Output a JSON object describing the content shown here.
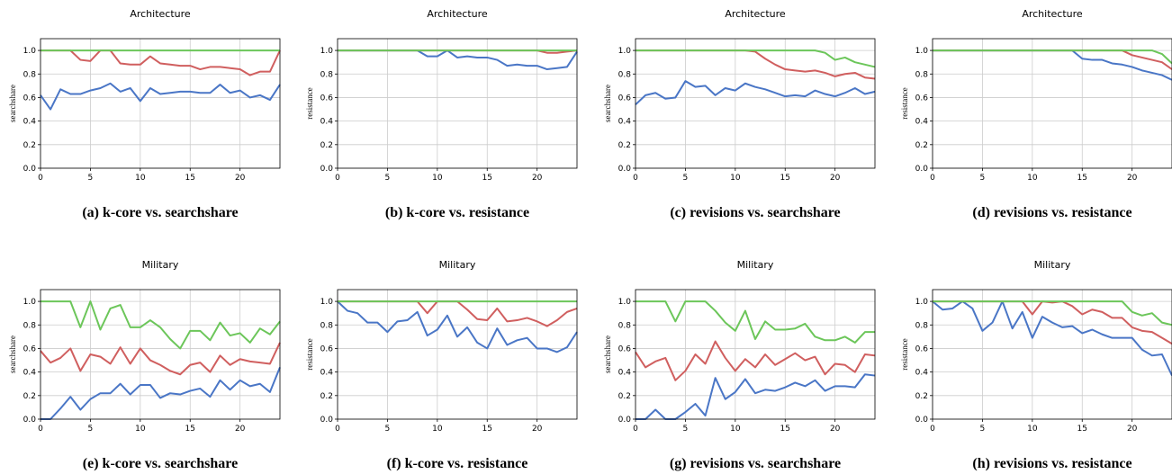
{
  "colors": {
    "blue": "#4a76c6",
    "red": "#d05f5f",
    "green": "#6cc65a",
    "grid": "#cccccc"
  },
  "chart_data": [
    {
      "type": "line",
      "caption": "(a) k-core vs. searchshare",
      "title": "Architecture",
      "xlabel": "",
      "ylabel": "searchshare",
      "xlim": [
        0,
        24
      ],
      "ylim": [
        0,
        1.1
      ],
      "xticks": [
        "0",
        "5",
        "10",
        "15",
        "20"
      ],
      "yticks": [
        "0.0",
        "0.2",
        "0.4",
        "0.6",
        "0.8",
        "1.0"
      ],
      "grid": true,
      "x": [
        0,
        1,
        2,
        3,
        4,
        5,
        6,
        7,
        8,
        9,
        10,
        11,
        12,
        13,
        14,
        15,
        16,
        17,
        18,
        19,
        20,
        21,
        22,
        23,
        24
      ],
      "series": [
        {
          "color": "blue",
          "values": [
            0.62,
            0.5,
            0.67,
            0.63,
            0.63,
            0.66,
            0.68,
            0.72,
            0.65,
            0.68,
            0.57,
            0.68,
            0.63,
            0.64,
            0.65,
            0.65,
            0.64,
            0.64,
            0.71,
            0.64,
            0.66,
            0.6,
            0.62,
            0.58,
            0.71
          ]
        },
        {
          "color": "red",
          "values": [
            1.0,
            1.0,
            1.0,
            1.0,
            0.92,
            0.91,
            1.0,
            1.0,
            0.89,
            0.88,
            0.88,
            0.95,
            0.89,
            0.88,
            0.87,
            0.87,
            0.84,
            0.86,
            0.86,
            0.85,
            0.84,
            0.79,
            0.82,
            0.82,
            1.0
          ]
        },
        {
          "color": "green",
          "values": [
            1.0,
            1.0,
            1.0,
            1.0,
            1.0,
            1.0,
            1.0,
            1.0,
            1.0,
            1.0,
            1.0,
            1.0,
            1.0,
            1.0,
            1.0,
            1.0,
            1.0,
            1.0,
            1.0,
            1.0,
            1.0,
            1.0,
            1.0,
            1.0,
            1.0
          ]
        }
      ]
    },
    {
      "type": "line",
      "caption": "(b) k-core vs. resistance",
      "title": "Architecture",
      "xlabel": "",
      "ylabel": "resistance",
      "xlim": [
        0,
        24
      ],
      "ylim": [
        0,
        1.1
      ],
      "xticks": [
        "0",
        "5",
        "10",
        "15",
        "20"
      ],
      "yticks": [
        "0.0",
        "0.2",
        "0.4",
        "0.6",
        "0.8",
        "1.0"
      ],
      "grid": true,
      "x": [
        0,
        1,
        2,
        3,
        4,
        5,
        6,
        7,
        8,
        9,
        10,
        11,
        12,
        13,
        14,
        15,
        16,
        17,
        18,
        19,
        20,
        21,
        22,
        23,
        24
      ],
      "series": [
        {
          "color": "blue",
          "values": [
            1.0,
            1.0,
            1.0,
            1.0,
            1.0,
            1.0,
            1.0,
            1.0,
            1.0,
            0.95,
            0.95,
            1.0,
            0.94,
            0.95,
            0.94,
            0.94,
            0.92,
            0.87,
            0.88,
            0.87,
            0.87,
            0.84,
            0.85,
            0.86,
            0.99
          ]
        },
        {
          "color": "red",
          "values": [
            1.0,
            1.0,
            1.0,
            1.0,
            1.0,
            1.0,
            1.0,
            1.0,
            1.0,
            1.0,
            1.0,
            1.0,
            1.0,
            1.0,
            1.0,
            1.0,
            1.0,
            1.0,
            1.0,
            1.0,
            1.0,
            0.98,
            0.98,
            0.99,
            1.0
          ]
        },
        {
          "color": "green",
          "values": [
            1.0,
            1.0,
            1.0,
            1.0,
            1.0,
            1.0,
            1.0,
            1.0,
            1.0,
            1.0,
            1.0,
            1.0,
            1.0,
            1.0,
            1.0,
            1.0,
            1.0,
            1.0,
            1.0,
            1.0,
            1.0,
            1.0,
            1.0,
            1.0,
            1.0
          ]
        }
      ]
    },
    {
      "type": "line",
      "caption": "(c) revisions vs. searchshare",
      "title": "Architecture",
      "xlabel": "",
      "ylabel": "searchshare",
      "xlim": [
        0,
        24
      ],
      "ylim": [
        0,
        1.1
      ],
      "xticks": [
        "0",
        "5",
        "10",
        "15",
        "20"
      ],
      "yticks": [
        "0.0",
        "0.2",
        "0.4",
        "0.6",
        "0.8",
        "1.0"
      ],
      "grid": true,
      "x": [
        0,
        1,
        2,
        3,
        4,
        5,
        6,
        7,
        8,
        9,
        10,
        11,
        12,
        13,
        14,
        15,
        16,
        17,
        18,
        19,
        20,
        21,
        22,
        23,
        24
      ],
      "series": [
        {
          "color": "blue",
          "values": [
            0.54,
            0.62,
            0.64,
            0.59,
            0.6,
            0.74,
            0.69,
            0.7,
            0.62,
            0.68,
            0.66,
            0.72,
            0.69,
            0.67,
            0.64,
            0.61,
            0.62,
            0.61,
            0.66,
            0.63,
            0.61,
            0.64,
            0.68,
            0.63,
            0.65
          ]
        },
        {
          "color": "red",
          "values": [
            1.0,
            1.0,
            1.0,
            1.0,
            1.0,
            1.0,
            1.0,
            1.0,
            1.0,
            1.0,
            1.0,
            1.0,
            0.99,
            0.93,
            0.88,
            0.84,
            0.83,
            0.82,
            0.83,
            0.81,
            0.78,
            0.8,
            0.81,
            0.77,
            0.76
          ]
        },
        {
          "color": "green",
          "values": [
            1.0,
            1.0,
            1.0,
            1.0,
            1.0,
            1.0,
            1.0,
            1.0,
            1.0,
            1.0,
            1.0,
            1.0,
            1.0,
            1.0,
            1.0,
            1.0,
            1.0,
            1.0,
            1.0,
            0.98,
            0.92,
            0.94,
            0.9,
            0.88,
            0.86
          ]
        }
      ]
    },
    {
      "type": "line",
      "caption": "(d) revisions vs. resistance",
      "title": "Architecture",
      "xlabel": "",
      "ylabel": "resistance",
      "xlim": [
        0,
        24
      ],
      "ylim": [
        0,
        1.1
      ],
      "xticks": [
        "0",
        "5",
        "10",
        "15",
        "20"
      ],
      "yticks": [
        "0.0",
        "0.2",
        "0.4",
        "0.6",
        "0.8",
        "1.0"
      ],
      "grid": true,
      "x": [
        0,
        1,
        2,
        3,
        4,
        5,
        6,
        7,
        8,
        9,
        10,
        11,
        12,
        13,
        14,
        15,
        16,
        17,
        18,
        19,
        20,
        21,
        22,
        23,
        24
      ],
      "series": [
        {
          "color": "blue",
          "values": [
            1.0,
            1.0,
            1.0,
            1.0,
            1.0,
            1.0,
            1.0,
            1.0,
            1.0,
            1.0,
            1.0,
            1.0,
            1.0,
            1.0,
            1.0,
            0.93,
            0.92,
            0.92,
            0.89,
            0.88,
            0.86,
            0.83,
            0.81,
            0.79,
            0.75
          ]
        },
        {
          "color": "red",
          "values": [
            1.0,
            1.0,
            1.0,
            1.0,
            1.0,
            1.0,
            1.0,
            1.0,
            1.0,
            1.0,
            1.0,
            1.0,
            1.0,
            1.0,
            1.0,
            1.0,
            1.0,
            1.0,
            1.0,
            1.0,
            0.96,
            0.94,
            0.92,
            0.9,
            0.84
          ]
        },
        {
          "color": "green",
          "values": [
            1.0,
            1.0,
            1.0,
            1.0,
            1.0,
            1.0,
            1.0,
            1.0,
            1.0,
            1.0,
            1.0,
            1.0,
            1.0,
            1.0,
            1.0,
            1.0,
            1.0,
            1.0,
            1.0,
            1.0,
            1.0,
            1.0,
            1.0,
            0.97,
            0.89
          ]
        }
      ]
    },
    {
      "type": "line",
      "caption": "(e) k-core vs. searchshare",
      "title": "Military",
      "xlabel": "",
      "ylabel": "searchshare",
      "xlim": [
        0,
        24
      ],
      "ylim": [
        0,
        1.1
      ],
      "xticks": [
        "0",
        "5",
        "10",
        "15",
        "20"
      ],
      "yticks": [
        "0.0",
        "0.2",
        "0.4",
        "0.6",
        "0.8",
        "1.0"
      ],
      "grid": true,
      "x": [
        0,
        1,
        2,
        3,
        4,
        5,
        6,
        7,
        8,
        9,
        10,
        11,
        12,
        13,
        14,
        15,
        16,
        17,
        18,
        19,
        20,
        21,
        22,
        23,
        24
      ],
      "series": [
        {
          "color": "blue",
          "values": [
            0.0,
            0.0,
            0.09,
            0.19,
            0.08,
            0.17,
            0.22,
            0.22,
            0.3,
            0.21,
            0.29,
            0.29,
            0.18,
            0.22,
            0.21,
            0.24,
            0.26,
            0.19,
            0.33,
            0.25,
            0.33,
            0.28,
            0.3,
            0.23,
            0.44
          ]
        },
        {
          "color": "red",
          "values": [
            0.58,
            0.48,
            0.52,
            0.6,
            0.41,
            0.55,
            0.53,
            0.47,
            0.61,
            0.47,
            0.6,
            0.5,
            0.46,
            0.41,
            0.38,
            0.46,
            0.48,
            0.4,
            0.54,
            0.46,
            0.51,
            0.49,
            0.48,
            0.47,
            0.65
          ]
        },
        {
          "color": "green",
          "values": [
            1.0,
            1.0,
            1.0,
            1.0,
            0.78,
            1.0,
            0.76,
            0.94,
            0.97,
            0.78,
            0.78,
            0.84,
            0.78,
            0.68,
            0.6,
            0.75,
            0.75,
            0.67,
            0.82,
            0.71,
            0.73,
            0.65,
            0.77,
            0.72,
            0.83
          ]
        }
      ]
    },
    {
      "type": "line",
      "caption": "(f) k-core vs. resistance",
      "title": "Military",
      "xlabel": "",
      "ylabel": "resistance",
      "xlim": [
        0,
        24
      ],
      "ylim": [
        0,
        1.1
      ],
      "xticks": [
        "0",
        "5",
        "10",
        "15",
        "20"
      ],
      "yticks": [
        "0.0",
        "0.2",
        "0.4",
        "0.6",
        "0.8",
        "1.0"
      ],
      "grid": true,
      "x": [
        0,
        1,
        2,
        3,
        4,
        5,
        6,
        7,
        8,
        9,
        10,
        11,
        12,
        13,
        14,
        15,
        16,
        17,
        18,
        19,
        20,
        21,
        22,
        23,
        24
      ],
      "series": [
        {
          "color": "blue",
          "values": [
            1.0,
            0.92,
            0.9,
            0.82,
            0.82,
            0.74,
            0.83,
            0.84,
            0.91,
            0.71,
            0.76,
            0.88,
            0.7,
            0.78,
            0.65,
            0.6,
            0.77,
            0.63,
            0.67,
            0.69,
            0.6,
            0.6,
            0.57,
            0.61,
            0.74
          ]
        },
        {
          "color": "red",
          "values": [
            1.0,
            1.0,
            1.0,
            1.0,
            1.0,
            1.0,
            1.0,
            1.0,
            1.0,
            0.9,
            1.0,
            1.0,
            1.0,
            0.93,
            0.85,
            0.84,
            0.94,
            0.83,
            0.84,
            0.86,
            0.83,
            0.79,
            0.84,
            0.91,
            0.94
          ]
        },
        {
          "color": "green",
          "values": [
            1.0,
            1.0,
            1.0,
            1.0,
            1.0,
            1.0,
            1.0,
            1.0,
            1.0,
            1.0,
            1.0,
            1.0,
            1.0,
            1.0,
            1.0,
            1.0,
            1.0,
            1.0,
            1.0,
            1.0,
            1.0,
            1.0,
            1.0,
            1.0,
            1.0
          ]
        }
      ]
    },
    {
      "type": "line",
      "caption": "(g) revisions vs. searchshare",
      "title": "Military",
      "xlabel": "",
      "ylabel": "searchshare",
      "xlim": [
        0,
        24
      ],
      "ylim": [
        0,
        1.1
      ],
      "xticks": [
        "0",
        "5",
        "10",
        "15",
        "20"
      ],
      "yticks": [
        "0.0",
        "0.2",
        "0.4",
        "0.6",
        "0.8",
        "1.0"
      ],
      "grid": true,
      "x": [
        0,
        1,
        2,
        3,
        4,
        5,
        6,
        7,
        8,
        9,
        10,
        11,
        12,
        13,
        14,
        15,
        16,
        17,
        18,
        19,
        20,
        21,
        22,
        23,
        24
      ],
      "series": [
        {
          "color": "blue",
          "values": [
            0.0,
            0.0,
            0.08,
            0.0,
            0.0,
            0.06,
            0.13,
            0.03,
            0.35,
            0.17,
            0.23,
            0.34,
            0.22,
            0.25,
            0.24,
            0.27,
            0.31,
            0.28,
            0.33,
            0.24,
            0.28,
            0.28,
            0.27,
            0.38,
            0.37
          ]
        },
        {
          "color": "red",
          "values": [
            0.57,
            0.44,
            0.49,
            0.52,
            0.33,
            0.41,
            0.55,
            0.47,
            0.66,
            0.52,
            0.41,
            0.51,
            0.44,
            0.55,
            0.46,
            0.51,
            0.56,
            0.5,
            0.53,
            0.38,
            0.47,
            0.46,
            0.4,
            0.55,
            0.54
          ]
        },
        {
          "color": "green",
          "values": [
            1.0,
            1.0,
            1.0,
            1.0,
            0.83,
            1.0,
            1.0,
            1.0,
            0.92,
            0.82,
            0.75,
            0.92,
            0.68,
            0.83,
            0.76,
            0.76,
            0.77,
            0.81,
            0.7,
            0.67,
            0.67,
            0.7,
            0.65,
            0.74,
            0.74
          ]
        }
      ]
    },
    {
      "type": "line",
      "caption": "(h) revisions vs. resistance",
      "title": "Military",
      "xlabel": "",
      "ylabel": "resistance",
      "xlim": [
        0,
        24
      ],
      "ylim": [
        0,
        1.1
      ],
      "xticks": [
        "0",
        "5",
        "10",
        "15",
        "20"
      ],
      "yticks": [
        "0.0",
        "0.2",
        "0.4",
        "0.6",
        "0.8",
        "1.0"
      ],
      "grid": true,
      "x": [
        0,
        1,
        2,
        3,
        4,
        5,
        6,
        7,
        8,
        9,
        10,
        11,
        12,
        13,
        14,
        15,
        16,
        17,
        18,
        19,
        20,
        21,
        22,
        23,
        24
      ],
      "series": [
        {
          "color": "blue",
          "values": [
            1.0,
            0.93,
            0.94,
            1.0,
            0.94,
            0.75,
            0.82,
            1.0,
            0.77,
            0.91,
            0.69,
            0.87,
            0.82,
            0.78,
            0.79,
            0.73,
            0.76,
            0.72,
            0.69,
            0.69,
            0.69,
            0.59,
            0.54,
            0.55,
            0.37
          ]
        },
        {
          "color": "red",
          "values": [
            1.0,
            1.0,
            1.0,
            1.0,
            1.0,
            1.0,
            1.0,
            1.0,
            1.0,
            1.0,
            0.89,
            1.0,
            0.99,
            1.0,
            0.96,
            0.89,
            0.93,
            0.91,
            0.86,
            0.86,
            0.78,
            0.75,
            0.74,
            0.69,
            0.64
          ]
        },
        {
          "color": "green",
          "values": [
            1.0,
            1.0,
            1.0,
            1.0,
            1.0,
            1.0,
            1.0,
            1.0,
            1.0,
            1.0,
            1.0,
            1.0,
            1.0,
            1.0,
            1.0,
            1.0,
            1.0,
            1.0,
            1.0,
            1.0,
            0.91,
            0.88,
            0.9,
            0.82,
            0.8
          ]
        }
      ]
    }
  ]
}
